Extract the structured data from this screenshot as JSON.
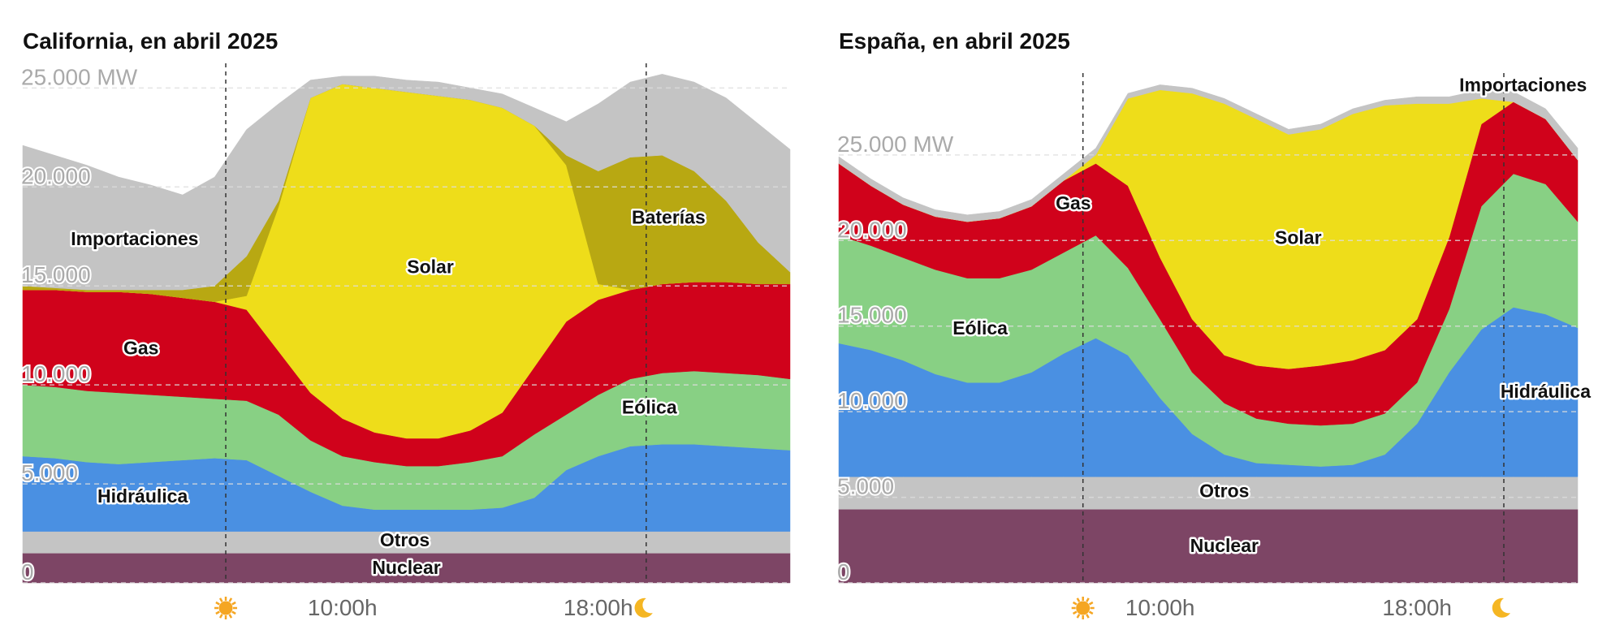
{
  "chart_data": [
    {
      "type": "area",
      "stacked": true,
      "title": "California, en abril 2025",
      "x": [
        0,
        1,
        2,
        3,
        4,
        5,
        6,
        7,
        8,
        9,
        10,
        11,
        12,
        13,
        14,
        15,
        16,
        17,
        18,
        19,
        20,
        21,
        22,
        23,
        24
      ],
      "xlim": [
        0,
        24
      ],
      "xticks": [
        {
          "value": 10,
          "label": "10:00h"
        },
        {
          "value": 18,
          "label": "18:00h"
        }
      ],
      "ylim": [
        0,
        26000
      ],
      "yticks": [
        0,
        {
          "value": 5000,
          "label": "5.000"
        },
        {
          "value": 10000,
          "label": "10.000"
        },
        {
          "value": 15000,
          "label": "15.000"
        },
        {
          "value": 20000,
          "label": "20.000"
        },
        {
          "value": 25000,
          "label": "25.000 MW"
        }
      ],
      "grid": true,
      "sunrise": 6.35,
      "sunset": 19.5,
      "series": [
        {
          "name": "Nuclear",
          "color": "#7d4565",
          "values": [
            1500,
            1500,
            1500,
            1500,
            1500,
            1500,
            1500,
            1500,
            1500,
            1500,
            1500,
            1500,
            1500,
            1500,
            1500,
            1500,
            1500,
            1500,
            1500,
            1500,
            1500,
            1500,
            1500,
            1500,
            1500
          ]
        },
        {
          "name": "Otros",
          "color": "#c4c4c4",
          "values": [
            1100,
            1100,
            1100,
            1100,
            1100,
            1100,
            1100,
            1100,
            1100,
            1100,
            1100,
            1100,
            1100,
            1100,
            1100,
            1100,
            1100,
            1100,
            1100,
            1100,
            1100,
            1100,
            1100,
            1100,
            1100
          ]
        },
        {
          "name": "Hidráulica",
          "color": "#4a90e2",
          "values": [
            3800,
            3700,
            3500,
            3400,
            3500,
            3600,
            3700,
            3600,
            2800,
            2000,
            1300,
            1100,
            1100,
            1100,
            1100,
            1200,
            1700,
            3100,
            3800,
            4300,
            4400,
            4400,
            4300,
            4200,
            4100
          ]
        },
        {
          "name": "Eólica",
          "color": "#88d084",
          "values": [
            3600,
            3600,
            3600,
            3600,
            3400,
            3200,
            3000,
            3000,
            3100,
            2600,
            2500,
            2400,
            2200,
            2200,
            2400,
            2600,
            3200,
            2800,
            3100,
            3400,
            3600,
            3700,
            3700,
            3700,
            3600
          ]
        },
        {
          "name": "Gas",
          "color": "#d0021b",
          "values": [
            4800,
            4900,
            5000,
            5100,
            5100,
            5000,
            4900,
            4600,
            3200,
            2400,
            1900,
            1500,
            1400,
            1400,
            1600,
            2200,
            3400,
            4700,
            4800,
            4500,
            4500,
            4500,
            4600,
            4600,
            4800
          ]
        },
        {
          "name": "Solar",
          "color": "#eedd1a",
          "values": [
            0,
            0,
            0,
            0,
            0,
            0,
            0,
            700,
            7300,
            14900,
            16900,
            17400,
            17500,
            17300,
            16700,
            15400,
            12200,
            7900,
            800,
            0,
            0,
            0,
            0,
            0,
            0
          ]
        },
        {
          "name": "Baterías",
          "color": "#b8a812",
          "values": [
            200,
            100,
            100,
            100,
            200,
            400,
            800,
            2000,
            300,
            0,
            0,
            0,
            0,
            0,
            0,
            0,
            0,
            500,
            5700,
            6700,
            6500,
            5600,
            4100,
            2100,
            600
          ]
        },
        {
          "name": "Importaciones",
          "color": "#c4c4c4",
          "values": [
            7100,
            6700,
            6300,
            5700,
            5300,
            4800,
            5500,
            6400,
            4900,
            900,
            400,
            600,
            600,
            700,
            600,
            700,
            900,
            1700,
            3400,
            3800,
            4100,
            4500,
            5200,
            6000,
            6200
          ]
        }
      ]
    },
    {
      "type": "area",
      "stacked": true,
      "title": "España, en abril 2025",
      "x": [
        0,
        1,
        2,
        3,
        4,
        5,
        6,
        7,
        8,
        9,
        10,
        11,
        12,
        13,
        14,
        15,
        16,
        17,
        18,
        19,
        20,
        21,
        22,
        23
      ],
      "xlim": [
        0,
        23
      ],
      "xticks": [
        {
          "value": 10,
          "label": "10:00h"
        },
        {
          "value": 18,
          "label": "18:00h"
        }
      ],
      "ylim": [
        0,
        29500
      ],
      "yticks": [
        0,
        {
          "value": 5000,
          "label": "5.000"
        },
        {
          "value": 10000,
          "label": "10.000"
        },
        {
          "value": 15000,
          "label": "15.000"
        },
        {
          "value": 20000,
          "label": "20.000"
        },
        {
          "value": 25000,
          "label": "25.000 MW"
        }
      ],
      "grid": true,
      "sunrise": 7.6,
      "sunset": 20.7,
      "series": [
        {
          "name": "Nuclear",
          "color": "#7d4565",
          "values": [
            4300,
            4300,
            4300,
            4300,
            4300,
            4300,
            4300,
            4300,
            4300,
            4300,
            4300,
            4300,
            4300,
            4300,
            4300,
            4300,
            4300,
            4300,
            4300,
            4300,
            4300,
            4300,
            4300,
            4300
          ]
        },
        {
          "name": "Otros",
          "color": "#c4c4c4",
          "values": [
            1900,
            1900,
            1900,
            1900,
            1900,
            1900,
            1900,
            1900,
            1900,
            1900,
            1900,
            1900,
            1900,
            1900,
            1900,
            1900,
            1900,
            1900,
            1900,
            1900,
            1900,
            1900,
            1900,
            1900
          ]
        },
        {
          "name": "Hidráulica",
          "color": "#4a90e2",
          "values": [
            7800,
            7400,
            6800,
            6000,
            5500,
            5500,
            6100,
            7200,
            8100,
            7100,
            4600,
            2500,
            1300,
            800,
            700,
            600,
            700,
            1300,
            3100,
            6100,
            8600,
            9900,
            9500,
            8700
          ]
        },
        {
          "name": "Eólica",
          "color": "#88d084",
          "values": [
            6300,
            6100,
            6000,
            6100,
            6100,
            6100,
            6000,
            5900,
            6000,
            5100,
            4600,
            3600,
            3000,
            2600,
            2400,
            2400,
            2400,
            2400,
            2400,
            3700,
            7200,
            7800,
            7600,
            6200
          ]
        },
        {
          "name": "Gas",
          "color": "#d0021b",
          "values": [
            4200,
            3500,
            3100,
            3100,
            3300,
            3500,
            3700,
            4200,
            4200,
            4800,
            3600,
            3100,
            2800,
            3100,
            3200,
            3500,
            3700,
            3700,
            3700,
            4200,
            4800,
            4200,
            3800,
            3600
          ]
        },
        {
          "name": "Solar",
          "color": "#eedd1a",
          "values": [
            0,
            0,
            0,
            0,
            0,
            0,
            0,
            0,
            500,
            5100,
            9800,
            13200,
            14700,
            14400,
            13700,
            13800,
            14400,
            14300,
            12600,
            7800,
            1500,
            0,
            0,
            0
          ]
        },
        {
          "name": "Importaciones",
          "color": "#c4c4c4",
          "values": [
            400,
            400,
            400,
            400,
            400,
            400,
            400,
            400,
            400,
            300,
            300,
            300,
            300,
            300,
            300,
            300,
            300,
            300,
            400,
            400,
            500,
            600,
            600,
            700
          ]
        }
      ]
    }
  ]
}
